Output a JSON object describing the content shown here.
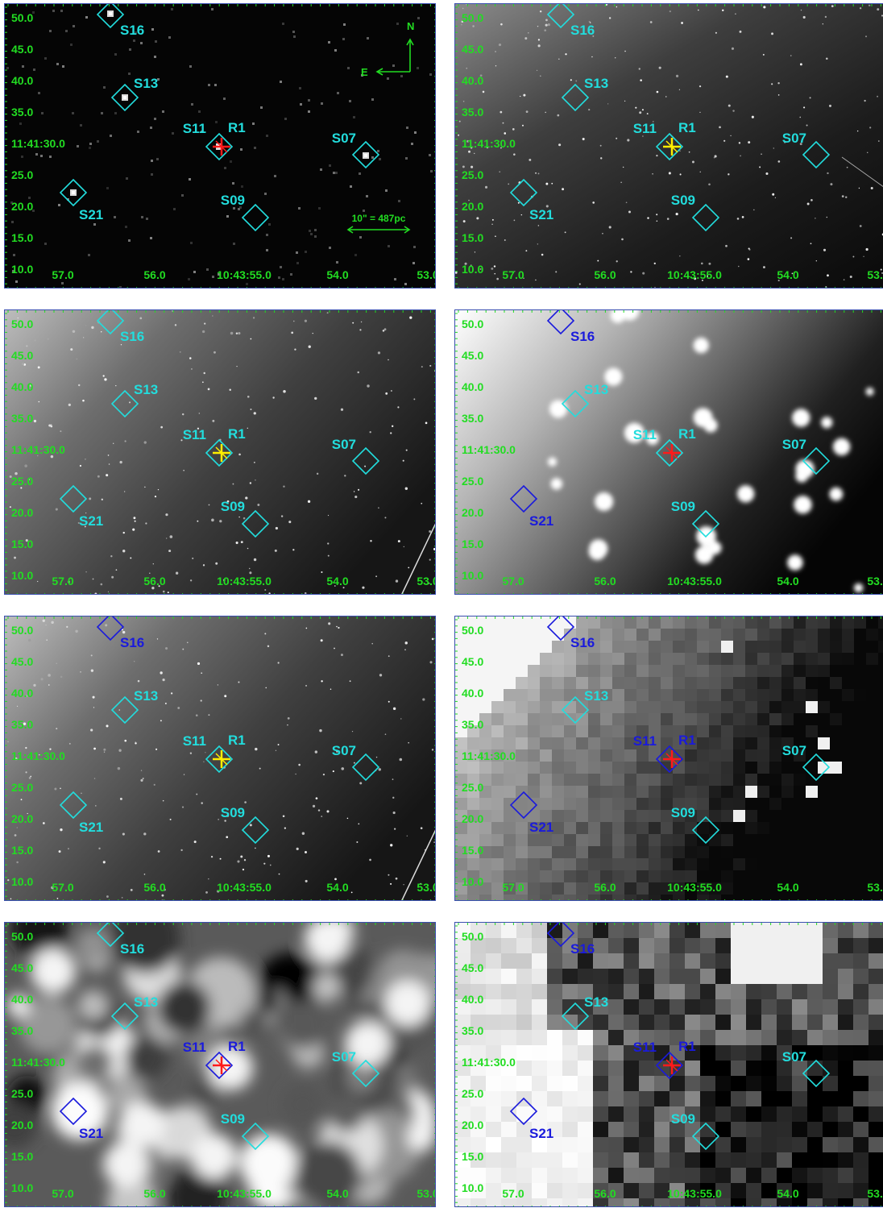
{
  "colors": {
    "axis_labels": "#22dd22",
    "marker_cyan": "#22dddd",
    "marker_blue": "#1a1adc",
    "cross_red": "#ff1a1a",
    "cross_yellow": "#ffee00",
    "compass": "#22dd22",
    "frame": "#3a50b0"
  },
  "axes": {
    "dec_ticks": [
      "50.0",
      "45.0",
      "40.0",
      "35.0",
      "11:41:30.0",
      "25.0",
      "20.0",
      "15.0",
      "10.0"
    ],
    "ra_ticks": [
      "57.0",
      "56.0",
      "10:43:55.0",
      "54.0",
      "53.0"
    ]
  },
  "compass": {
    "north": "N",
    "east": "E"
  },
  "scalebar": "10\" = 487pc",
  "sources": [
    "S16",
    "S13",
    "S11",
    "R1",
    "S07",
    "S21",
    "S09"
  ],
  "panels": [
    {
      "background": "sparse",
      "colors": {
        "S16": "cyan",
        "S13": "cyan",
        "S11": "cyan",
        "S07": "cyan",
        "S21": "cyan",
        "S09": "cyan"
      },
      "cross": "red",
      "compass": true,
      "scalebar": true
    },
    {
      "background": "galaxy-dark",
      "colors": {
        "S16": "cyan",
        "S13": "cyan",
        "S11": "cyan",
        "S07": "cyan",
        "S21": "cyan",
        "S09": "cyan"
      },
      "cross": "yellow",
      "compass": false,
      "scalebar": false
    },
    {
      "background": "galaxy-gray",
      "colors": {
        "S16": "cyan",
        "S13": "cyan",
        "S11": "cyan",
        "S07": "cyan",
        "S21": "cyan",
        "S09": "cyan"
      },
      "cross": "yellow",
      "compass": false,
      "scalebar": false
    },
    {
      "background": "blurred-bright",
      "colors": {
        "S16": "blue",
        "S13": "cyan",
        "S11": "cyan",
        "S07": "cyan",
        "S21": "blue",
        "S09": "cyan"
      },
      "cross": "red",
      "compass": false,
      "scalebar": false
    },
    {
      "background": "galaxy-gray",
      "colors": {
        "S16": "blue",
        "S13": "cyan",
        "S11": "cyan",
        "S07": "cyan",
        "S21": "cyan",
        "S09": "cyan"
      },
      "cross": "yellow",
      "compass": false,
      "scalebar": false
    },
    {
      "background": "pixelated-mid",
      "colors": {
        "S16": "blue",
        "S13": "cyan",
        "S11": "blue",
        "S07": "cyan",
        "S21": "blue",
        "S09": "cyan"
      },
      "cross": "red",
      "compass": false,
      "scalebar": false
    },
    {
      "background": "patchy",
      "colors": {
        "S16": "cyan",
        "S13": "cyan",
        "S11": "blue",
        "S07": "cyan",
        "S21": "blue",
        "S09": "cyan"
      },
      "cross": "red",
      "compass": false,
      "scalebar": false
    },
    {
      "background": "blocky",
      "colors": {
        "S16": "blue",
        "S13": "cyan",
        "S11": "blue",
        "S07": "cyan",
        "S21": "blue",
        "S09": "cyan"
      },
      "cross": "red",
      "compass": false,
      "scalebar": false
    }
  ]
}
